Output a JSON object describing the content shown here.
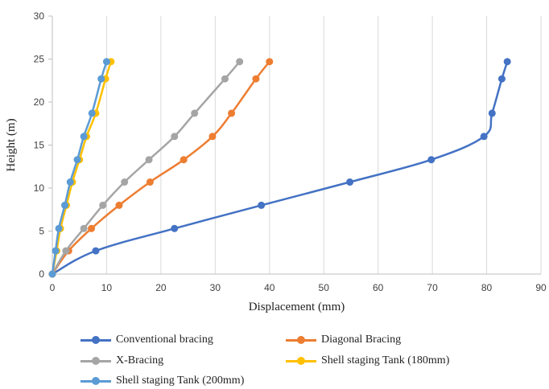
{
  "chart_data": {
    "type": "line",
    "title": "",
    "xlabel": "Displacement (mm)",
    "ylabel": "Height (m)",
    "xlim": [
      0,
      90
    ],
    "ylim": [
      0,
      30
    ],
    "xticks": [
      0,
      10,
      20,
      30,
      40,
      50,
      60,
      70,
      80,
      90
    ],
    "yticks": [
      0,
      5,
      10,
      15,
      20,
      25,
      30
    ],
    "grid": "vertical",
    "legend_position": "bottom",
    "series": [
      {
        "name": "Conventional bracing",
        "color": "#4472C4",
        "points": [
          [
            0,
            0
          ],
          [
            8,
            2.7
          ],
          [
            22.5,
            5.3
          ],
          [
            38.5,
            8.0
          ],
          [
            54.8,
            10.7
          ],
          [
            69.8,
            13.3
          ],
          [
            79.5,
            16.0
          ],
          [
            81.0,
            18.7
          ],
          [
            82.8,
            22.7
          ],
          [
            83.8,
            24.7
          ]
        ]
      },
      {
        "name": "Diagonal Bracing",
        "color": "#ED7D31",
        "points": [
          [
            0,
            0
          ],
          [
            3.0,
            2.7
          ],
          [
            7.2,
            5.3
          ],
          [
            12.3,
            8.0
          ],
          [
            18.0,
            10.7
          ],
          [
            24.2,
            13.3
          ],
          [
            29.5,
            16.0
          ],
          [
            33.0,
            18.7
          ],
          [
            37.5,
            22.7
          ],
          [
            40.0,
            24.7
          ]
        ]
      },
      {
        "name": "X-Bracing",
        "color": "#A5A5A5",
        "points": [
          [
            0,
            0
          ],
          [
            2.5,
            2.7
          ],
          [
            5.8,
            5.3
          ],
          [
            9.3,
            8.0
          ],
          [
            13.3,
            10.7
          ],
          [
            17.8,
            13.3
          ],
          [
            22.5,
            16.0
          ],
          [
            26.2,
            18.7
          ],
          [
            31.8,
            22.7
          ],
          [
            34.5,
            24.7
          ]
        ]
      },
      {
        "name": "Shell staging Tank (180mm)",
        "color": "#FFC000",
        "points": [
          [
            0,
            0
          ],
          [
            0.8,
            2.7
          ],
          [
            1.5,
            5.3
          ],
          [
            2.6,
            8.0
          ],
          [
            3.7,
            10.7
          ],
          [
            5.0,
            13.3
          ],
          [
            6.3,
            16.0
          ],
          [
            8.0,
            18.7
          ],
          [
            9.8,
            22.7
          ],
          [
            10.8,
            24.7
          ]
        ]
      },
      {
        "name": "Shell staging Tank (200mm)",
        "color": "#5B9BD5",
        "points": [
          [
            0,
            0
          ],
          [
            0.6,
            2.7
          ],
          [
            1.2,
            5.3
          ],
          [
            2.3,
            8.0
          ],
          [
            3.3,
            10.7
          ],
          [
            4.6,
            13.3
          ],
          [
            5.8,
            16.0
          ],
          [
            7.3,
            18.7
          ],
          [
            9.0,
            22.7
          ],
          [
            10.0,
            24.7
          ]
        ]
      }
    ]
  }
}
